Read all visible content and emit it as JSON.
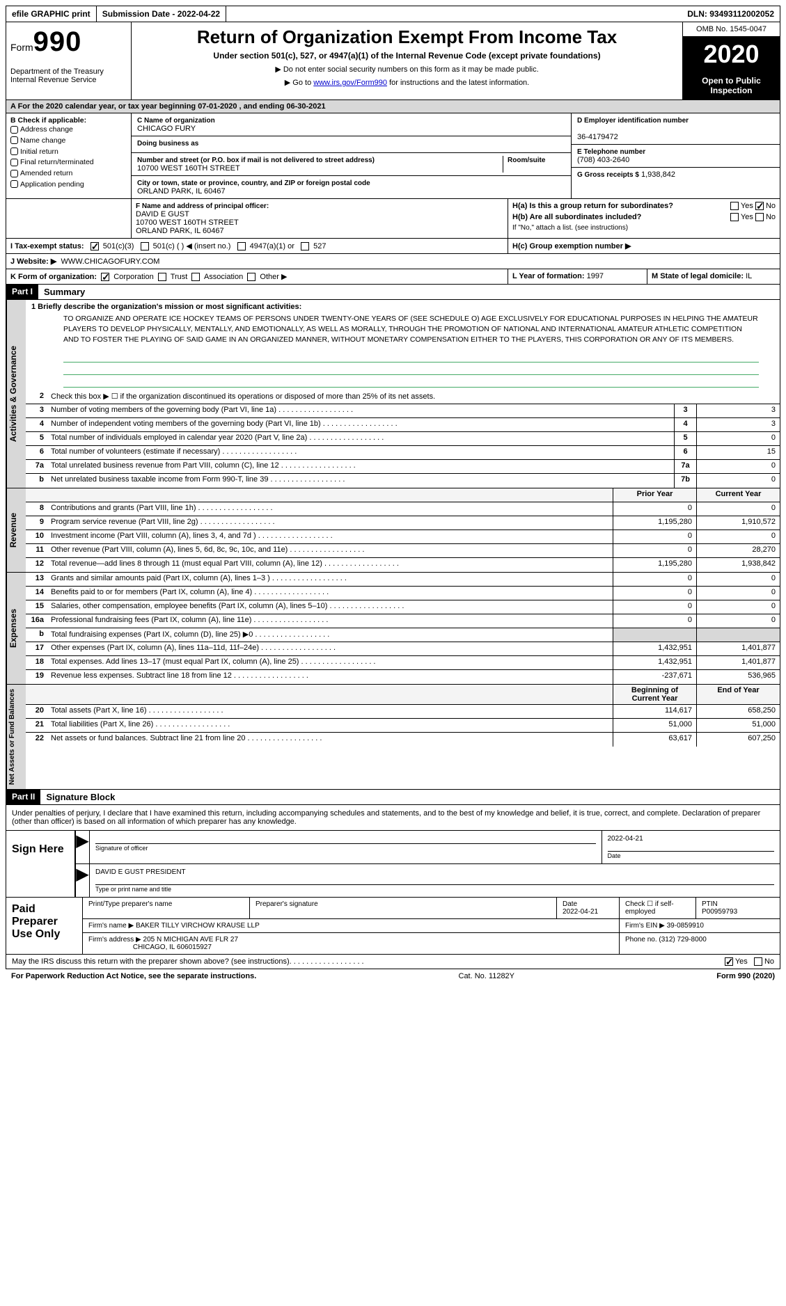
{
  "topbar": {
    "efile": "efile GRAPHIC print",
    "submission_label": "Submission Date -",
    "submission_date": "2022-04-22",
    "dln_label": "DLN:",
    "dln": "93493112002052"
  },
  "header": {
    "form": "Form",
    "form_no": "990",
    "dept": "Department of the Treasury\nInternal Revenue Service",
    "title": "Return of Organization Exempt From Income Tax",
    "sub": "Under section 501(c), 527, or 4947(a)(1) of the Internal Revenue Code (except private foundations)",
    "note1": "▶ Do not enter social security numbers on this form as it may be made public.",
    "note2_a": "▶ Go to ",
    "url": "www.irs.gov/Form990",
    "note2_b": " for instructions and the latest information.",
    "omb": "OMB No. 1545-0047",
    "year": "2020",
    "open": "Open to Public Inspection"
  },
  "taxyear": "A For the 2020 calendar year, or tax year beginning 07-01-2020  , and ending 06-30-2021",
  "b": {
    "lbl": "B Check if applicable:",
    "opts": [
      "Address change",
      "Name change",
      "Initial return",
      "Final return/terminated",
      "Amended return",
      "Application pending"
    ]
  },
  "c": {
    "name_lbl": "C Name of organization",
    "name": "CHICAGO FURY",
    "dba_lbl": "Doing business as",
    "dba": "",
    "addr_lbl": "Number and street (or P.O. box if mail is not delivered to street address)",
    "room_lbl": "Room/suite",
    "addr": "10700 WEST 160TH STREET",
    "city_lbl": "City or town, state or province, country, and ZIP or foreign postal code",
    "city": "ORLAND PARK, IL  60467"
  },
  "d": {
    "lbl": "D Employer identification number",
    "val": "36-4179472"
  },
  "e": {
    "lbl": "E Telephone number",
    "val": "(708) 403-2640"
  },
  "g": {
    "lbl": "G Gross receipts $",
    "val": "1,938,842"
  },
  "f": {
    "lbl": "F  Name and address of principal officer:",
    "name": "DAVID E GUST",
    "addr1": "10700 WEST 160TH STREET",
    "addr2": "ORLAND PARK, IL  60467"
  },
  "h": {
    "a_lbl": "H(a)  Is this a group return for subordinates?",
    "a_yes": "Yes",
    "a_no": "No",
    "a_checked": "no",
    "b_lbl": "H(b)  Are all subordinates included?",
    "b_yes": "Yes",
    "b_no": "No",
    "b_note": "If \"No,\" attach a list. (see instructions)",
    "c_lbl": "H(c)  Group exemption number ▶"
  },
  "i": {
    "lbl": "I    Tax-exempt status:",
    "o1": "501(c)(3)",
    "o2": "501(c) (  ) ◀ (insert no.)",
    "o3": "4947(a)(1) or",
    "o4": "527"
  },
  "j": {
    "lbl": "J   Website: ▶",
    "val": "WWW.CHICAGOFURY.COM"
  },
  "k": {
    "lbl": "K Form of organization:",
    "o1": "Corporation",
    "o2": "Trust",
    "o3": "Association",
    "o4": "Other ▶"
  },
  "l": {
    "lbl": "L Year of formation:",
    "val": "1997"
  },
  "m": {
    "lbl": "M State of legal domicile:",
    "val": "IL"
  },
  "part1": {
    "tag": "Part I",
    "title": "Summary"
  },
  "mission": {
    "lbl": "1    Briefly describe the organization's mission or most significant activities:",
    "text": "TO ORGANIZE AND OPERATE ICE HOCKEY TEAMS OF PERSONS UNDER TWENTY-ONE YEARS OF (SEE SCHEDULE O) AGE EXCLUSIVELY FOR EDUCATIONAL PURPOSES IN HELPING THE AMATEUR PLAYERS TO DEVELOP PHYSICALLY, MENTALLY, AND EMOTIONALLY, AS WELL AS MORALLY, THROUGH THE PROMOTION OF NATIONAL AND INTERNATIONAL AMATEUR ATHLETIC COMPETITION AND TO FOSTER THE PLAYING OF SAID GAME IN AN ORGANIZED MANNER, WITHOUT MONETARY COMPENSATION EITHER TO THE PLAYERS, THIS CORPORATION OR ANY OF ITS MEMBERS."
  },
  "gov": {
    "vtab": "Activities & Governance",
    "l2": "Check this box ▶ ☐ if the organization discontinued its operations or disposed of more than 25% of its net assets.",
    "rows": [
      {
        "n": "3",
        "d": "Number of voting members of the governing body (Part VI, line 1a)",
        "k": "3",
        "v": "3"
      },
      {
        "n": "4",
        "d": "Number of independent voting members of the governing body (Part VI, line 1b)",
        "k": "4",
        "v": "3"
      },
      {
        "n": "5",
        "d": "Total number of individuals employed in calendar year 2020 (Part V, line 2a)",
        "k": "5",
        "v": "0"
      },
      {
        "n": "6",
        "d": "Total number of volunteers (estimate if necessary)",
        "k": "6",
        "v": "15"
      },
      {
        "n": "7a",
        "d": "Total unrelated business revenue from Part VIII, column (C), line 12",
        "k": "7a",
        "v": "0"
      },
      {
        "n": "b",
        "d": "Net unrelated business taxable income from Form 990-T, line 39",
        "k": "7b",
        "v": "0"
      }
    ]
  },
  "rev": {
    "vtab": "Revenue",
    "hdr_prior": "Prior Year",
    "hdr_curr": "Current Year",
    "rows": [
      {
        "n": "8",
        "d": "Contributions and grants (Part VIII, line 1h)",
        "p": "0",
        "c": "0"
      },
      {
        "n": "9",
        "d": "Program service revenue (Part VIII, line 2g)",
        "p": "1,195,280",
        "c": "1,910,572"
      },
      {
        "n": "10",
        "d": "Investment income (Part VIII, column (A), lines 3, 4, and 7d )",
        "p": "0",
        "c": "0"
      },
      {
        "n": "11",
        "d": "Other revenue (Part VIII, column (A), lines 5, 6d, 8c, 9c, 10c, and 11e)",
        "p": "0",
        "c": "28,270"
      },
      {
        "n": "12",
        "d": "Total revenue—add lines 8 through 11 (must equal Part VIII, column (A), line 12)",
        "p": "1,195,280",
        "c": "1,938,842"
      }
    ]
  },
  "exp": {
    "vtab": "Expenses",
    "rows": [
      {
        "n": "13",
        "d": "Grants and similar amounts paid (Part IX, column (A), lines 1–3 )",
        "p": "0",
        "c": "0"
      },
      {
        "n": "14",
        "d": "Benefits paid to or for members (Part IX, column (A), line 4)",
        "p": "0",
        "c": "0"
      },
      {
        "n": "15",
        "d": "Salaries, other compensation, employee benefits (Part IX, column (A), lines 5–10)",
        "p": "0",
        "c": "0"
      },
      {
        "n": "16a",
        "d": "Professional fundraising fees (Part IX, column (A), line 11e)",
        "p": "0",
        "c": "0"
      },
      {
        "n": "b",
        "d": "Total fundraising expenses (Part IX, column (D), line 25) ▶0",
        "p": "",
        "c": "",
        "shaded": true
      },
      {
        "n": "17",
        "d": "Other expenses (Part IX, column (A), lines 11a–11d, 11f–24e)",
        "p": "1,432,951",
        "c": "1,401,877"
      },
      {
        "n": "18",
        "d": "Total expenses. Add lines 13–17 (must equal Part IX, column (A), line 25)",
        "p": "1,432,951",
        "c": "1,401,877"
      },
      {
        "n": "19",
        "d": "Revenue less expenses. Subtract line 18 from line 12",
        "p": "-237,671",
        "c": "536,965"
      }
    ]
  },
  "net": {
    "vtab": "Net Assets or Fund Balances",
    "hdr_prior": "Beginning of Current Year",
    "hdr_curr": "End of Year",
    "rows": [
      {
        "n": "20",
        "d": "Total assets (Part X, line 16)",
        "p": "114,617",
        "c": "658,250"
      },
      {
        "n": "21",
        "d": "Total liabilities (Part X, line 26)",
        "p": "51,000",
        "c": "51,000"
      },
      {
        "n": "22",
        "d": "Net assets or fund balances. Subtract line 21 from line 20",
        "p": "63,617",
        "c": "607,250"
      }
    ]
  },
  "part2": {
    "tag": "Part II",
    "title": "Signature Block"
  },
  "sig": {
    "decl": "Under penalties of perjury, I declare that I have examined this return, including accompanying schedules and statements, and to the best of my knowledge and belief, it is true, correct, and complete. Declaration of preparer (other than officer) is based on all information of which preparer has any knowledge.",
    "here": "Sign Here",
    "date": "2022-04-21",
    "sig_lbl": "Signature of officer",
    "date_lbl": "Date",
    "name": "DAVID E GUST PRESIDENT",
    "name_lbl": "Type or print name and title"
  },
  "prep": {
    "left": "Paid Preparer Use Only",
    "r1": {
      "c1": "Print/Type preparer's name",
      "c2": "Preparer's signature",
      "c3_lbl": "Date",
      "c3": "2022-04-21",
      "c4_lbl": "Check ☐ if self-employed",
      "c5_lbl": "PTIN",
      "c5": "P00959793"
    },
    "r2": {
      "lbl": "Firm's name    ▶",
      "val": "BAKER TILLY VIRCHOW KRAUSE LLP",
      "ein_lbl": "Firm's EIN ▶",
      "ein": "39-0859910"
    },
    "r3": {
      "lbl": "Firm's address ▶",
      "val1": "205 N MICHIGAN AVE FLR 27",
      "val2": "CHICAGO, IL  606015927",
      "ph_lbl": "Phone no.",
      "ph": "(312) 729-8000"
    }
  },
  "footer": {
    "q": "May the IRS discuss this return with the preparer shown above? (see instructions)",
    "yes": "Yes",
    "no": "No",
    "pra": "For Paperwork Reduction Act Notice, see the separate instructions.",
    "cat": "Cat. No. 11282Y",
    "form": "Form 990 (2020)"
  },
  "colors": {
    "black": "#000000",
    "link": "#0000cc",
    "shade": "#d8d8d8",
    "line_green": "#448866"
  }
}
